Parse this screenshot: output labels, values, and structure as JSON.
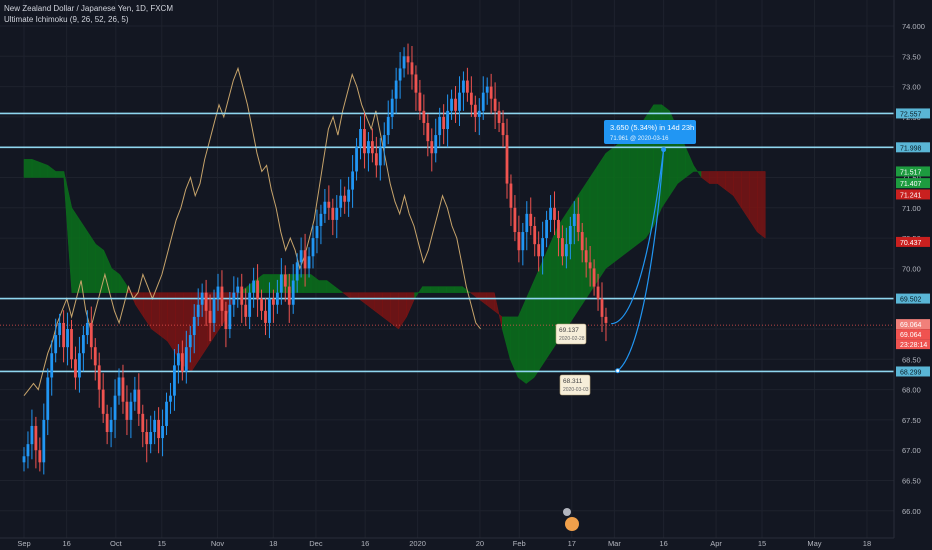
{
  "header": {
    "symbol": "New Zealand Dollar / Japanese Yen, 1D, FXCM",
    "indicator": "Ultimate Ichimoku (9, 26, 52, 26, 5)"
  },
  "chart_data": {
    "type": "candlestick",
    "symbol": "NZDJPY",
    "interval": "1D",
    "y_range": [
      65.9,
      74.1
    ],
    "y_ticks": [
      66.0,
      66.5,
      67.0,
      67.5,
      68.0,
      68.5,
      69.0,
      69.5,
      70.0,
      70.5,
      71.0,
      71.5,
      72.0,
      72.5,
      73.0,
      73.5,
      74.0
    ],
    "x_ticks": [
      {
        "label": "Sep",
        "day": 0
      },
      {
        "label": "16",
        "day": 13
      },
      {
        "label": "Oct",
        "day": 28
      },
      {
        "label": "15",
        "day": 42
      },
      {
        "label": "Nov",
        "day": 59
      },
      {
        "label": "18",
        "day": 76
      },
      {
        "label": "Dec",
        "day": 89
      },
      {
        "label": "16",
        "day": 104
      },
      {
        "label": "2020",
        "day": 120
      },
      {
        "label": "20",
        "day": 139
      },
      {
        "label": "Feb",
        "day": 151
      },
      {
        "label": "17",
        "day": 167
      },
      {
        "label": "Mar",
        "day": 180
      },
      {
        "label": "16",
        "day": 195
      },
      {
        "label": "Apr",
        "day": 211
      },
      {
        "label": "15",
        "day": 225
      },
      {
        "label": "May",
        "day": 241
      },
      {
        "label": "18",
        "day": 257
      },
      {
        "label": "Jun",
        "day": 272
      },
      {
        "label": "15",
        "day": 286
      }
    ],
    "closes": [
      66.9,
      67.1,
      67.4,
      67.0,
      66.8,
      67.5,
      68.2,
      68.6,
      68.9,
      69.1,
      68.7,
      69.0,
      68.5,
      68.2,
      68.6,
      68.9,
      69.1,
      68.7,
      68.4,
      68.0,
      67.6,
      67.3,
      67.5,
      67.9,
      68.2,
      67.8,
      67.5,
      67.8,
      68.0,
      67.6,
      67.3,
      67.1,
      67.3,
      67.5,
      67.2,
      67.4,
      67.8,
      67.9,
      68.4,
      68.6,
      68.3,
      68.7,
      68.9,
      69.2,
      69.4,
      69.6,
      69.3,
      69.1,
      69.5,
      69.7,
      69.3,
      69.0,
      69.4,
      69.6,
      69.7,
      69.4,
      69.2,
      69.6,
      69.8,
      69.5,
      69.3,
      69.1,
      69.5,
      69.4,
      69.6,
      69.9,
      69.7,
      69.4,
      69.8,
      70.1,
      70.3,
      70.0,
      70.2,
      70.5,
      70.7,
      70.9,
      71.1,
      71.0,
      70.8,
      71.0,
      71.2,
      71.1,
      71.3,
      71.6,
      72.0,
      72.3,
      71.9,
      72.1,
      71.9,
      71.7,
      72.0,
      72.2,
      72.5,
      72.8,
      73.1,
      73.3,
      73.5,
      73.4,
      73.2,
      72.9,
      72.6,
      72.4,
      72.1,
      71.9,
      72.2,
      72.5,
      72.3,
      72.6,
      72.8,
      72.6,
      72.9,
      73.1,
      72.9,
      72.7,
      72.5,
      72.6,
      72.9,
      73.0,
      72.8,
      72.6,
      72.4,
      72.2,
      71.4,
      71.0,
      70.6,
      70.3,
      70.6,
      70.9,
      70.7,
      70.4,
      70.2,
      70.5,
      70.8,
      71.0,
      70.8,
      70.5,
      70.2,
      70.4,
      70.7,
      70.9,
      70.6,
      70.3,
      70.1,
      70.0,
      69.7,
      69.5,
      69.2,
      69.1
    ],
    "cloud_a": [
      71.8,
      71.8,
      71.75,
      71.7,
      71.6,
      71.6,
      71.0,
      70.8,
      70.6,
      70.4,
      70.3,
      70.0,
      69.9,
      69.7,
      69.4,
      69.2,
      69.0,
      68.9,
      68.8,
      68.6,
      68.4,
      68.3,
      68.5,
      68.7,
      68.9,
      69.1,
      69.4,
      69.6,
      69.7,
      69.8,
      69.9,
      69.9,
      69.9,
      69.9,
      69.9,
      69.9,
      69.9,
      69.8,
      69.8,
      69.7,
      69.6,
      69.5,
      69.5,
      69.4,
      69.3,
      69.2,
      69.1,
      69.0,
      69.2,
      69.5,
      69.7,
      69.7,
      69.7,
      69.7,
      69.7,
      69.7,
      69.6,
      69.5,
      69.4,
      69.3,
      69.2,
      69.2,
      69.2,
      69.5,
      69.8,
      70.1,
      70.4,
      70.7,
      70.9,
      71.1,
      71.3,
      71.5,
      71.7,
      71.9,
      72.0,
      72.1,
      72.2,
      72.3,
      72.5,
      72.7,
      72.7,
      72.6,
      72.3,
      72.0,
      71.7,
      71.5,
      71.4,
      71.4,
      71.3,
      71.2,
      71.0,
      70.8,
      70.6,
      70.5
    ],
    "cloud_b": [
      71.5,
      71.5,
      71.5,
      71.5,
      71.5,
      71.5,
      69.6,
      69.6,
      69.6,
      69.6,
      69.6,
      69.6,
      69.6,
      69.6,
      69.6,
      69.6,
      69.6,
      69.6,
      69.6,
      69.6,
      69.6,
      69.6,
      69.6,
      69.6,
      69.6,
      69.6,
      69.6,
      69.6,
      69.6,
      69.6,
      69.6,
      69.6,
      69.6,
      69.6,
      69.6,
      69.6,
      69.6,
      69.6,
      69.6,
      69.6,
      69.6,
      69.6,
      69.6,
      69.6,
      69.6,
      69.6,
      69.6,
      69.6,
      69.6,
      69.6,
      69.6,
      69.6,
      69.6,
      69.6,
      69.6,
      69.6,
      69.6,
      69.6,
      69.6,
      69.6,
      69.0,
      68.5,
      68.2,
      68.1,
      68.2,
      68.4,
      68.6,
      68.8,
      69.0,
      69.2,
      69.4,
      69.6,
      69.8,
      70.0,
      70.1,
      70.2,
      70.3,
      70.4,
      70.5,
      70.7,
      71.0,
      71.2,
      71.4,
      71.5,
      71.6,
      71.6,
      71.6,
      71.6,
      71.6,
      71.6,
      71.6,
      71.6,
      71.6,
      71.6
    ],
    "lagging_span": [
      67.9,
      68.0,
      68.1,
      68.0,
      68.3,
      68.6,
      68.8,
      69.1,
      69.3,
      69.5,
      69.2,
      69.5,
      69.8,
      69.3,
      69.0,
      69.3,
      69.6,
      69.9,
      69.6,
      69.3,
      69.1,
      69.4,
      69.7,
      69.5,
      69.6,
      69.9,
      69.7,
      69.5,
      69.7,
      69.9,
      70.2,
      70.5,
      70.8,
      71.0,
      71.3,
      71.5,
      71.2,
      71.4,
      71.8,
      72.1,
      72.4,
      72.7,
      72.5,
      72.8,
      73.1,
      73.3,
      73.0,
      72.7,
      72.3,
      71.9,
      71.6,
      71.7,
      71.3,
      71.0,
      70.6,
      70.3,
      70.5,
      70.3,
      70.0,
      70.2,
      70.5,
      70.8,
      71.3,
      71.8,
      72.3,
      72.5,
      72.2,
      72.6,
      72.9,
      73.2,
      73.0,
      72.7,
      72.5,
      72.3,
      72.6,
      72.2,
      71.8,
      71.4,
      71.1,
      70.9,
      71.2,
      70.9,
      70.7,
      70.4,
      70.1,
      70.3,
      70.6,
      70.9,
      71.2,
      71.0,
      70.7,
      70.5,
      70.1,
      69.7,
      69.4,
      69.1,
      69.0
    ],
    "horizontal_levels": [
      72.557,
      71.998,
      69.502,
      68.299
    ],
    "price_labels": [
      {
        "value": "74.000",
        "kind": "tick"
      },
      {
        "value": "72.557",
        "kind": "level",
        "color": "#5ab6d6"
      },
      {
        "value": "71.998",
        "kind": "level",
        "color": "#5ab6d6"
      },
      {
        "value": "71.517",
        "kind": "green",
        "color": "#1d9b3f"
      },
      {
        "value": "71.407",
        "kind": "green",
        "color": "#1d9b3f"
      },
      {
        "value": "71.241",
        "kind": "red",
        "color": "#c9201f"
      },
      {
        "value": "70.437",
        "kind": "red",
        "color": "#c9201f"
      },
      {
        "value": "69.502",
        "kind": "level",
        "color": "#5ab6d6"
      },
      {
        "value": "69.064",
        "kind": "price",
        "color": "#f1807a"
      },
      {
        "value": "69.064",
        "kind": "price2",
        "color": "#ef5350"
      },
      {
        "value": "23:28:14",
        "kind": "timer",
        "color": "#ef5350"
      },
      {
        "value": "68.299",
        "kind": "level",
        "color": "#5ab6d6"
      }
    ],
    "projection": {
      "label": "3.650 (5.34%) in 14d 23h",
      "sublabel": "71.961 @ 2020-03-16",
      "start_day": 181,
      "start_price": 68.311,
      "end_day": 195,
      "end_price": 71.961
    },
    "annotations": [
      {
        "price": "69.137",
        "date": "2020-02-28",
        "day": 179
      },
      {
        "price": "68.311",
        "date": "2020-03-03",
        "day": 182
      }
    ]
  }
}
